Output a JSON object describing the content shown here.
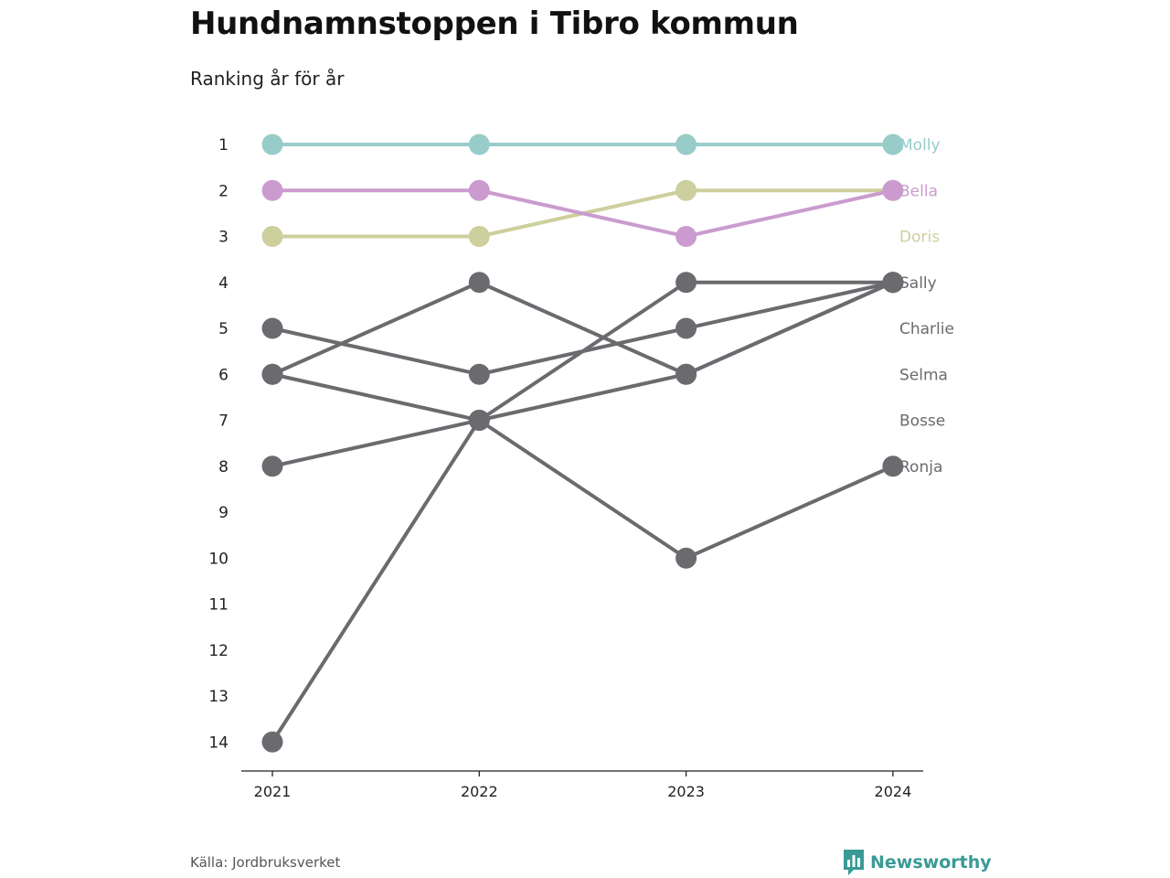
{
  "header": {
    "title": "Hundnamnstoppen i Tibro kommun",
    "subtitle": "Ranking år för år"
  },
  "footer": {
    "source": "Källa: Jordbruksverket",
    "brand": "Newsworthy",
    "brand_icon": "bar-chart-logo-icon",
    "brand_color": "#3a9a95"
  },
  "chart_data": {
    "type": "line",
    "subtype": "bump",
    "title": "Hundnamnstoppen i Tibro kommun",
    "subtitle": "Ranking år för år",
    "x": [
      "2021",
      "2022",
      "2023",
      "2024"
    ],
    "y_ticks": [
      1,
      2,
      3,
      4,
      5,
      6,
      7,
      8,
      9,
      10,
      11,
      12,
      13,
      14
    ],
    "y_inverted": true,
    "ylim": [
      1,
      14
    ],
    "grid": false,
    "legend": "end labels at right",
    "series": [
      {
        "name": "Sally",
        "values": [
          6,
          4,
          6,
          4
        ],
        "color": "#6b6a6e"
      },
      {
        "name": "Charlie",
        "values": [
          5,
          6,
          5,
          4
        ],
        "color": "#6b6a6e"
      },
      {
        "name": "Selma",
        "values": [
          14,
          7,
          4,
          4
        ],
        "color": "#6b6a6e"
      },
      {
        "name": "Bosse",
        "values": [
          8,
          7,
          6,
          4
        ],
        "color": "#6b6a6e"
      },
      {
        "name": "Ronja",
        "values": [
          6,
          7,
          10,
          8
        ],
        "color": "#6b6a6e"
      },
      {
        "name": "Doris",
        "values": [
          3,
          3,
          2,
          2
        ],
        "color": "#cdcf9d"
      },
      {
        "name": "Bella",
        "values": [
          2,
          2,
          3,
          2
        ],
        "color": "#cb9bcf"
      },
      {
        "name": "Molly",
        "values": [
          1,
          1,
          1,
          1
        ],
        "color": "#97ccc9"
      }
    ],
    "end_labels": [
      "Molly",
      "Bella",
      "Doris",
      "Sally",
      "Charlie",
      "Selma",
      "Bosse",
      "Ronja"
    ],
    "end_label_colors": [
      "#97ccc9",
      "#cb9bcf",
      "#cdcf9d",
      "#6b6a6e",
      "#6b6a6e",
      "#6b6a6e",
      "#6b6a6e",
      "#6b6a6e"
    ]
  }
}
